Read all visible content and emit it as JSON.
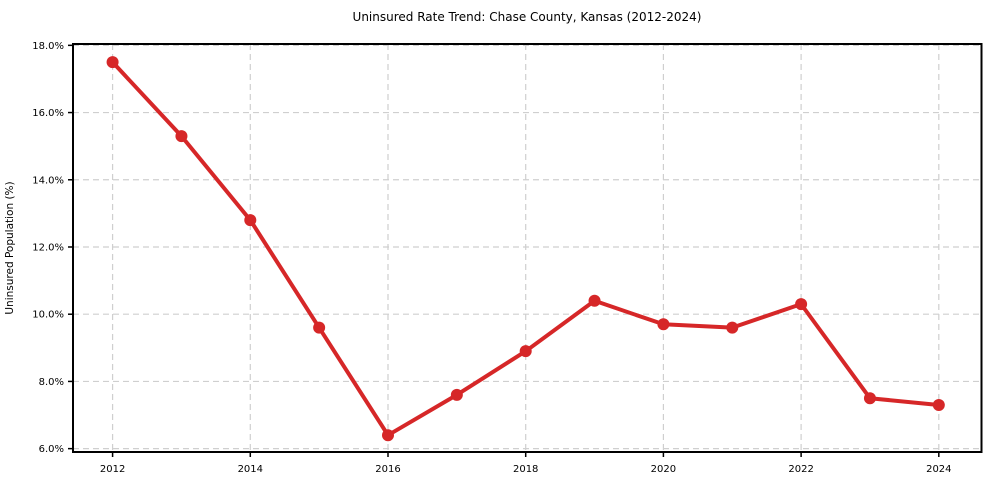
{
  "chart_data": {
    "type": "line",
    "title": "Uninsured Rate Trend: Chase County, Kansas (2012-2024)",
    "xlabel": "",
    "ylabel": "Uninsured Population (%)",
    "x": [
      2012,
      2013,
      2014,
      2015,
      2016,
      2017,
      2018,
      2019,
      2020,
      2021,
      2022,
      2023,
      2024
    ],
    "series": [
      {
        "name": "Uninsured rate",
        "values": [
          17.5,
          15.3,
          12.8,
          9.6,
          6.4,
          7.6,
          8.9,
          10.4,
          9.7,
          9.6,
          10.3,
          7.5,
          7.3
        ]
      }
    ],
    "x_tick_values": [
      2012,
      2014,
      2016,
      2018,
      2020,
      2022,
      2024
    ],
    "x_tick_labels": [
      "2012",
      "2014",
      "2016",
      "2018",
      "2020",
      "2022",
      "2024"
    ],
    "y_tick_values": [
      6,
      8,
      10,
      12,
      14,
      16,
      18
    ],
    "y_tick_labels": [
      "6.0%",
      "8.0%",
      "10.0%",
      "12.0%",
      "14.0%",
      "16.0%",
      "18.0%"
    ],
    "xlim": [
      2011.425,
      2024.62
    ],
    "ylim": [
      5.9,
      18.04
    ],
    "grid": true,
    "grid_style": "dashed",
    "legend_position": "none",
    "colors": {
      "line": "#d62728",
      "marker": "#d62728",
      "grid": "#cfcfcf",
      "spine": "#000000",
      "background": "#ffffff"
    }
  }
}
